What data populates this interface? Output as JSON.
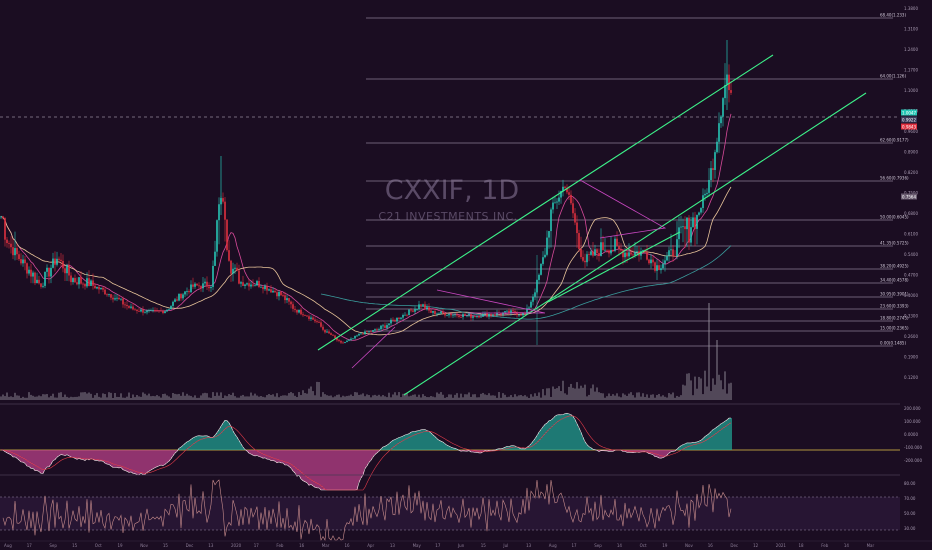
{
  "watermark": {
    "title": "CXXIF, 1D",
    "subtitle": "C21 INVESTMENTS INC."
  },
  "colors": {
    "background": "#1b0d22",
    "up": "#26c6b5",
    "down": "#e0303f",
    "channel": "#3df28a",
    "ma_fast": "#d84a9a",
    "ma_slow": "#e8c49a",
    "ma_long": "#3a9c9c",
    "triangle": "#c847c0",
    "macd_pos": "#1fa898",
    "macd_neg": "#c2448f",
    "rsi": "#c98d8d"
  },
  "chart_data": {
    "type": "candlestick",
    "fib_levels": [
      {
        "label": "68.40(1.233)",
        "price": 1.2332
      },
      {
        "label": "64.00(1.126)",
        "price": 1.1256
      },
      {
        "label": "62.60(0.9177)",
        "price": 0.9177
      },
      {
        "label": "56.60(0.7936)",
        "price": 0.7936
      },
      {
        "label": "50.00(0.6045)",
        "price": 0.6045
      },
      {
        "label": "41.35(0.5725)",
        "price": 0.5725
      },
      {
        "label": "38.20(0.4925)",
        "price": 0.4925
      },
      {
        "label": "34.40(0.4578)",
        "price": 0.4578
      },
      {
        "label": "30.95(0.3901)",
        "price": 0.3901
      },
      {
        "label": "23.60(0.3393)",
        "price": 0.3393
      },
      {
        "label": "18.80(0.2745)",
        "price": 0.2745
      },
      {
        "label": "15.00(0.2365)",
        "price": 0.2365
      },
      {
        "label": "0.00(0.1485)",
        "price": 0.1485
      }
    ],
    "price_axis_ticks": [
      "1.3800",
      "1.3100",
      "1.2400",
      "1.1700",
      "1.1000",
      "1.0300",
      "0.9600",
      "0.8900",
      "0.8200",
      "0.7500",
      "0.6800",
      "0.6100",
      "0.5400",
      "0.4700",
      "0.4000",
      "0.3300",
      "0.2600",
      "0.1900",
      "0.1200"
    ],
    "price_badges": [
      "1.0047",
      "0.9922",
      "0.9843",
      "0.7564"
    ],
    "indicator_ticks": {
      "macd": [
        "200.000",
        "100.000",
        "0.0000",
        "-100.000",
        "-200.000"
      ],
      "rsi": [
        "80.00",
        "70.00",
        "50.00",
        "30.00"
      ]
    },
    "x_labels": [
      "Aug",
      "17",
      "Sep",
      "15",
      "Oct",
      "19",
      "Nov",
      "15",
      "Dec",
      "13",
      "2020",
      "17",
      "Feb",
      "16",
      "Mar",
      "16",
      "Apr",
      "13",
      "May",
      "17",
      "Jun",
      "15",
      "Jul",
      "13",
      "Aug",
      "17",
      "Sep",
      "14",
      "Oct",
      "19",
      "Nov",
      "16",
      "Dec",
      "12",
      "2021",
      "18",
      "Feb",
      "14",
      "Mar"
    ]
  }
}
